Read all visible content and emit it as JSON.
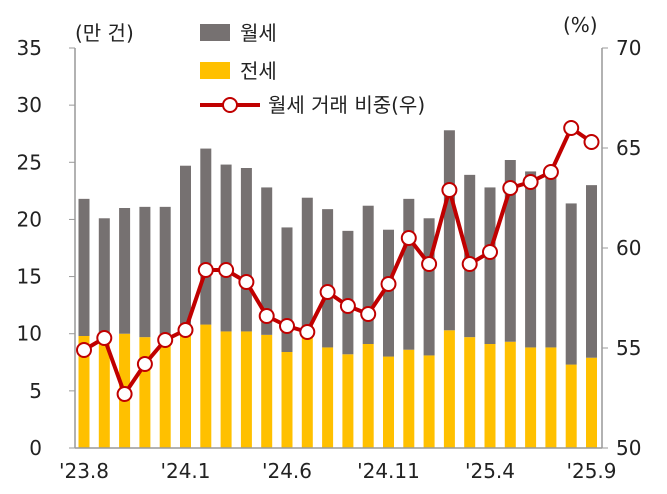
{
  "chart_data": {
    "type": "bar+line",
    "categories": [
      "'23.8",
      "'23.9",
      "'23.10",
      "'23.11",
      "'23.12",
      "'24.1",
      "'24.2",
      "'24.3",
      "'24.4",
      "'24.5",
      "'24.6",
      "'24.7",
      "'24.8",
      "'24.9",
      "'24.10",
      "'24.11",
      "'24.12",
      "'25.1",
      "'25.2",
      "'25.3",
      "'25.4",
      "'25.5",
      "'25.6",
      "'25.7",
      "'25.8",
      "'25.9"
    ],
    "x_tick_labels": [
      "'23.8",
      "'24.1",
      "'24.6",
      "'24.11",
      "'25.4",
      "'25.9"
    ],
    "left_unit": "(만 건)",
    "right_unit": "(%)",
    "left_ylim": [
      0,
      35
    ],
    "left_ticks": [
      0,
      5,
      10,
      15,
      20,
      25,
      30,
      35
    ],
    "right_ylim": [
      50,
      70
    ],
    "right_ticks": [
      50,
      55,
      60,
      65,
      70
    ],
    "series": [
      {
        "name": "월세",
        "type": "stacked-bar",
        "color": "#767171",
        "values": [
          12.0,
          10.4,
          11.0,
          11.4,
          11.4,
          14.9,
          15.4,
          14.6,
          14.3,
          12.9,
          10.9,
          12.1,
          12.1,
          10.8,
          12.1,
          11.1,
          13.2,
          12.0,
          17.5,
          14.2,
          13.7,
          15.9,
          15.4,
          15.1,
          14.1,
          15.1
        ]
      },
      {
        "name": "전세",
        "type": "stacked-bar",
        "color": "#FFC000",
        "values": [
          9.8,
          9.7,
          10.0,
          9.7,
          9.7,
          9.8,
          10.8,
          10.2,
          10.2,
          9.9,
          8.4,
          9.8,
          8.8,
          8.2,
          9.1,
          8.0,
          8.6,
          8.1,
          10.3,
          9.7,
          9.1,
          9.3,
          8.8,
          8.8,
          7.3,
          7.9
        ]
      },
      {
        "name": "월세 거래 비중(우)",
        "type": "line",
        "axis": "right",
        "color": "#C00000",
        "values": [
          54.9,
          55.5,
          52.7,
          54.2,
          55.4,
          55.9,
          58.9,
          58.9,
          58.3,
          56.6,
          56.1,
          55.8,
          57.8,
          57.1,
          56.7,
          58.2,
          60.5,
          59.2,
          62.9,
          59.2,
          59.8,
          63.0,
          63.3,
          63.8,
          66.0,
          65.3
        ]
      }
    ],
    "legend": "top-left"
  }
}
